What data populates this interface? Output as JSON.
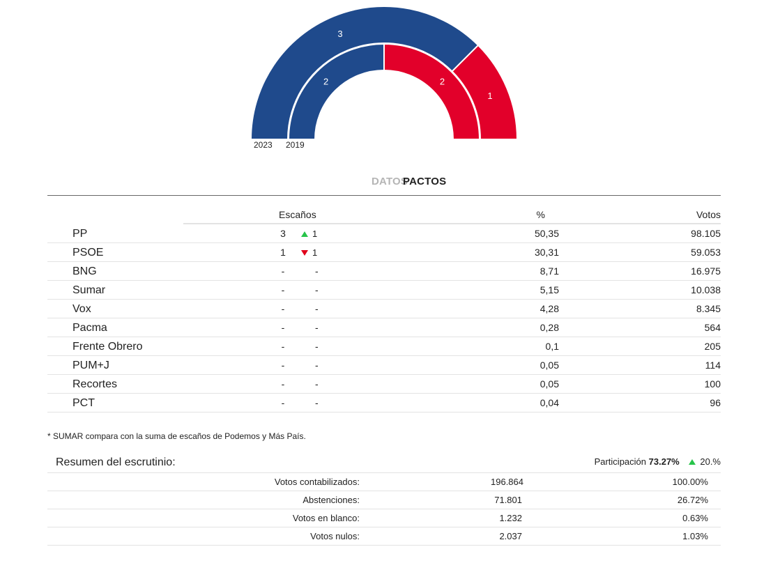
{
  "chart_data": {
    "type": "parliament",
    "rings": [
      {
        "label": "2023",
        "seats": [
          {
            "party": "PP",
            "value": 3,
            "color": "#1f4a8c"
          },
          {
            "party": "PSOE",
            "value": 1,
            "color": "#e2002a"
          }
        ]
      },
      {
        "label": "2019",
        "seats": [
          {
            "party": "PP",
            "value": 2,
            "color": "#1f4a8c"
          },
          {
            "party": "PSOE",
            "value": 2,
            "color": "#e2002a"
          }
        ]
      }
    ]
  },
  "tabs": {
    "datos": "DATOS",
    "pactos": "PACTOS"
  },
  "results": {
    "headers": {
      "seats": "Escaños",
      "pct": "%",
      "votes": "Votos"
    },
    "rows": [
      {
        "party": "PP",
        "seats": "3",
        "change": "1",
        "dir": "up",
        "pct": "50,35",
        "votes": "98.105"
      },
      {
        "party": "PSOE",
        "seats": "1",
        "change": "1",
        "dir": "down",
        "pct": "30,31",
        "votes": "59.053"
      },
      {
        "party": "BNG",
        "seats": "-",
        "change": "-",
        "dir": "none",
        "pct": "8,71",
        "votes": "16.975"
      },
      {
        "party": "Sumar",
        "seats": "-",
        "change": "-",
        "dir": "none",
        "pct": "5,15",
        "votes": "10.038"
      },
      {
        "party": "Vox",
        "seats": "-",
        "change": "-",
        "dir": "none",
        "pct": "4,28",
        "votes": "8.345"
      },
      {
        "party": "Pacma",
        "seats": "-",
        "change": "-",
        "dir": "none",
        "pct": "0,28",
        "votes": "564"
      },
      {
        "party": "Frente Obrero",
        "seats": "-",
        "change": "-",
        "dir": "none",
        "pct": "0,1",
        "votes": "205"
      },
      {
        "party": "PUM+J",
        "seats": "-",
        "change": "-",
        "dir": "none",
        "pct": "0,05",
        "votes": "114"
      },
      {
        "party": "Recortes",
        "seats": "-",
        "change": "-",
        "dir": "none",
        "pct": "0,05",
        "votes": "100"
      },
      {
        "party": "PCT",
        "seats": "-",
        "change": "-",
        "dir": "none",
        "pct": "0,04",
        "votes": "96"
      }
    ]
  },
  "footnote": "* SUMAR compara con la suma de escaños de Podemos y Más País.",
  "summary": {
    "title": "Resumen del escrutinio:",
    "participation_label": "Participación",
    "participation_value": "73.27%",
    "participation_change": "20.%",
    "rows": [
      {
        "label": "Votos contabilizados:",
        "value": "196.864",
        "pct": "100.00%"
      },
      {
        "label": "Abstenciones:",
        "value": "71.801",
        "pct": "26.72%"
      },
      {
        "label": "Votos en blanco:",
        "value": "1.232",
        "pct": "0.63%"
      },
      {
        "label": "Votos nulos:",
        "value": "2.037",
        "pct": "1.03%"
      }
    ]
  }
}
